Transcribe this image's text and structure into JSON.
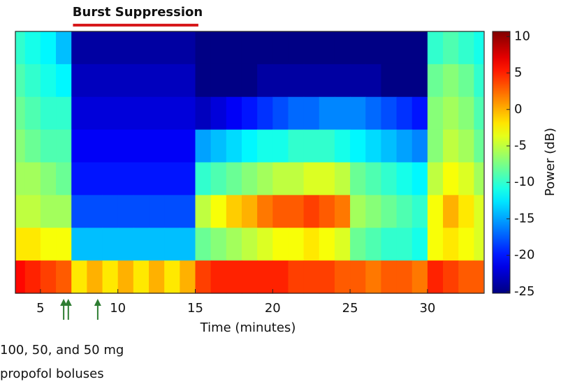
{
  "chart_data": {
    "type": "heatmap",
    "title": "Burst Suppression",
    "title_span": [
      7.1,
      15.2
    ],
    "title_span_color": "#d7191c",
    "xlabel": "Time (minutes)",
    "xlim": [
      3.38,
      33.66
    ],
    "xticks": [
      5,
      10,
      15,
      20,
      25,
      30
    ],
    "bins": [
      3.4,
      4,
      5,
      6,
      7,
      8,
      9,
      10,
      11,
      12,
      13,
      14,
      15,
      16,
      17,
      18,
      19,
      20,
      21,
      22,
      23,
      24,
      25,
      26,
      27,
      28,
      29,
      30,
      31,
      32,
      33,
      33.6
    ],
    "values": [
      [
        -10,
        -11,
        -12,
        -14,
        -24,
        -24,
        -24,
        -24,
        -24,
        -24,
        -24,
        -24,
        -25,
        -25,
        -25,
        -25,
        -25,
        -25,
        -25,
        -25,
        -25,
        -25,
        -25,
        -25,
        -25,
        -25,
        -25,
        -10,
        -9,
        -10,
        -11
      ],
      [
        -9,
        -10,
        -11,
        -12,
        -23,
        -23,
        -23,
        -23,
        -23,
        -23,
        -23,
        -23,
        -25,
        -25,
        -25,
        -25,
        -24,
        -24,
        -24,
        -24,
        -24,
        -24,
        -24,
        -24,
        -25,
        -25,
        -25,
        -8,
        -7,
        -8,
        -10
      ],
      [
        -8,
        -9,
        -10,
        -10,
        -22,
        -22,
        -22,
        -22,
        -22,
        -22,
        -22,
        -22,
        -23,
        -22,
        -21,
        -20,
        -19,
        -18,
        -17,
        -17,
        -16,
        -16,
        -16,
        -17,
        -18,
        -19,
        -20,
        -7,
        -6,
        -7,
        -9
      ],
      [
        -7,
        -8,
        -9,
        -9,
        -21,
        -21,
        -21,
        -21,
        -21,
        -21,
        -21,
        -21,
        -15,
        -14,
        -13,
        -12,
        -11,
        -11,
        -10,
        -10,
        -10,
        -11,
        -12,
        -13,
        -14,
        -15,
        -16,
        -7,
        -5,
        -6,
        -8
      ],
      [
        -6,
        -6,
        -7,
        -8,
        -20,
        -20,
        -20,
        -20,
        -20,
        -20,
        -20,
        -20,
        -10,
        -9,
        -8,
        -7,
        -6,
        -5,
        -5,
        -4,
        -4,
        -5,
        -8,
        -9,
        -10,
        -11,
        -12,
        -5,
        -3,
        -4,
        -6
      ],
      [
        -5,
        -5,
        -6,
        -6,
        -18,
        -18,
        -18,
        -18,
        -18,
        -18,
        -18,
        -18,
        -5,
        -3,
        -1,
        0,
        2,
        3,
        3,
        4,
        3,
        2,
        -6,
        -7,
        -8,
        -9,
        -10,
        -3,
        0,
        -2,
        -4
      ],
      [
        -2,
        -2,
        -3,
        -3,
        -14,
        -14,
        -14,
        -14,
        -14,
        -14,
        -14,
        -14,
        -8,
        -7,
        -6,
        -5,
        -4,
        -3,
        -3,
        -2,
        -3,
        -4,
        -8,
        -9,
        -10,
        -10,
        -11,
        -3,
        -2,
        -3,
        -4
      ],
      [
        6,
        5,
        4,
        3,
        -2,
        0,
        -2,
        0,
        -2,
        0,
        -2,
        0,
        4,
        5,
        5,
        5,
        5,
        5,
        4,
        4,
        4,
        3,
        3,
        2,
        3,
        3,
        2,
        5,
        4,
        3,
        3
      ]
    ],
    "colormap": "jet",
    "clim": [
      -25.2,
      10.7
    ],
    "cticks": [
      10,
      5,
      0,
      -5,
      -10,
      -15,
      -20,
      -25
    ],
    "clabel": "Power (dB)",
    "arrows_x": [
      6.5,
      6.8,
      8.7
    ],
    "arrow_color": "#2e7d32",
    "annotation": [
      "100, 50, and 50 mg",
      "propofol boluses"
    ]
  }
}
